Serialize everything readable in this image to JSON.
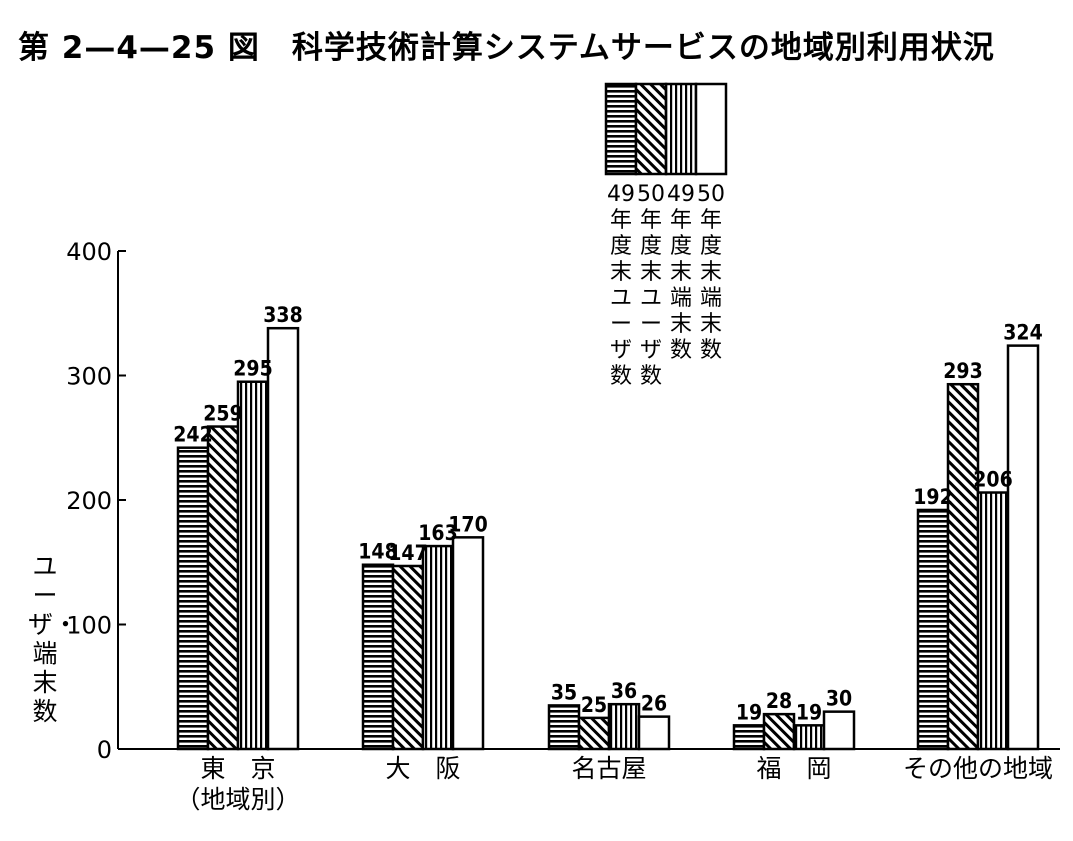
{
  "title": "第 2—4—25 図　科学技術計算システムサービスの地域別利用状況",
  "chart_data": {
    "type": "bar",
    "categories": [
      "東　京\n（地域別）",
      "大　阪",
      "名古屋",
      "福　岡",
      "その他の地域"
    ],
    "series": [
      {
        "name": "49年度末ユーザ数",
        "values": [
          242,
          148,
          35,
          19,
          192
        ],
        "labels": [
          "242",
          "148",
          "35",
          "19",
          "192"
        ],
        "pattern": "horizontal"
      },
      {
        "name": "50年度末ユーザ数",
        "values": [
          259,
          147,
          25,
          28,
          293
        ],
        "labels": [
          "259",
          "147",
          "25",
          "28",
          "293"
        ],
        "pattern": "diagonal"
      },
      {
        "name": "49年度末端末数",
        "values": [
          295,
          163,
          36,
          19,
          206
        ],
        "labels": [
          "295",
          "163",
          "36",
          "19",
          "206"
        ],
        "pattern": "vertical"
      },
      {
        "name": "50年度末端末数",
        "values": [
          338,
          170,
          26,
          30,
          324
        ],
        "labels": [
          "338",
          "170",
          "26",
          "30",
          "324"
        ],
        "pattern": "blank"
      }
    ],
    "ylabel": "ユーザ・端末数",
    "yticks": [
      "0",
      "100",
      "200",
      "300",
      "400"
    ],
    "ylim": [
      0,
      400
    ],
    "grid": false,
    "legend_position": "top-center"
  },
  "colors": {
    "ink": "#000000",
    "paper": "#ffffff"
  }
}
